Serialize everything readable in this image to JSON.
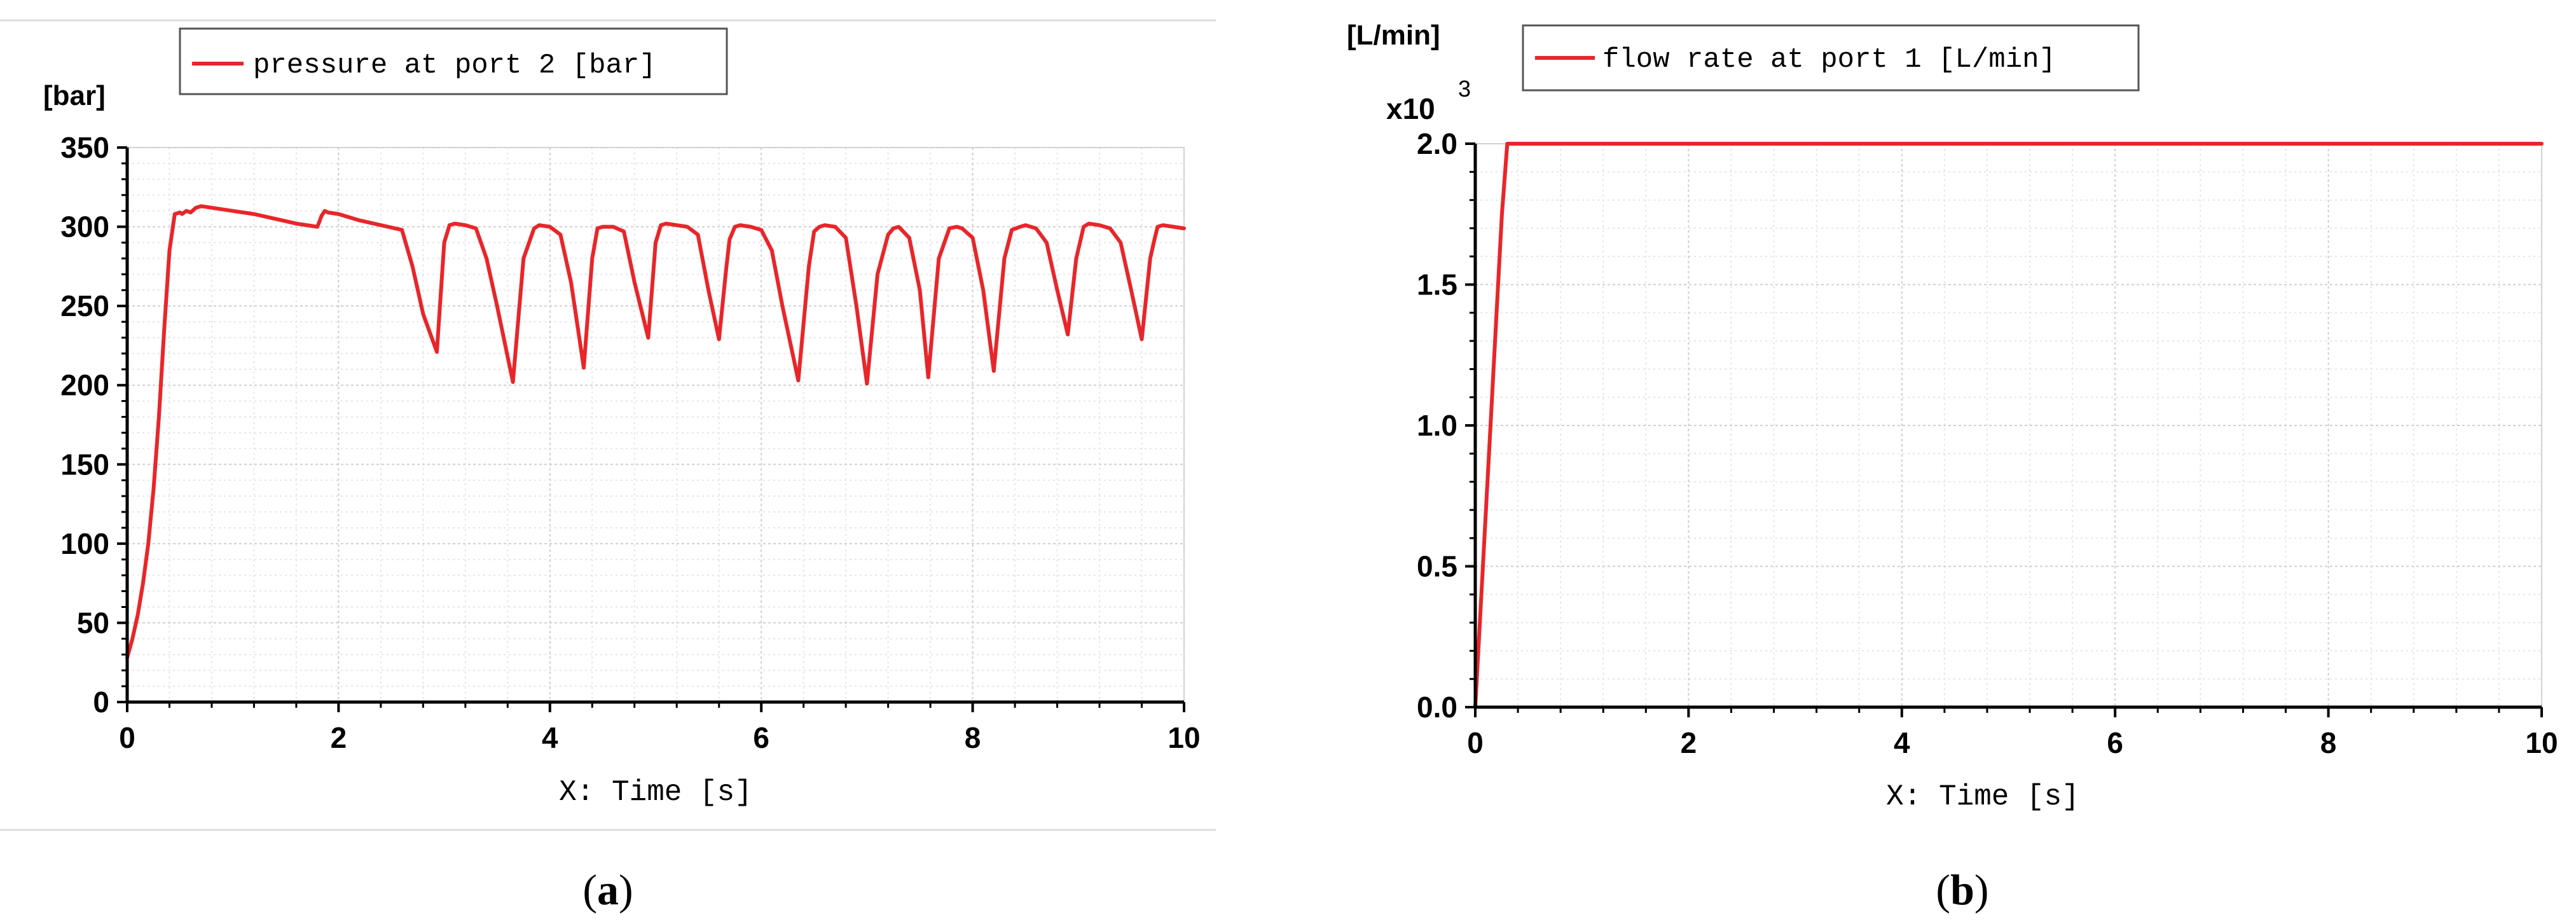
{
  "colors": {
    "series": "#e8262a",
    "axis": "#000000",
    "grid": "#cfcfcf",
    "subgrid": "#e6e6e6",
    "frame": "#d8d8d8"
  },
  "panels": [
    {
      "caption_letter": "a",
      "y_unit": "[bar]",
      "y_multiplier": "",
      "x_label": "X: Time [s]"
    },
    {
      "caption_letter": "b",
      "y_unit": "[L/min]",
      "y_multiplier": "x10",
      "y_multiplier_exp": "3",
      "x_label": "X: Time [s]"
    }
  ],
  "chart_data": [
    {
      "type": "line",
      "title": "",
      "xlabel": "X: Time [s]",
      "ylabel": "[bar]",
      "xlim": [
        0,
        10
      ],
      "ylim": [
        0,
        350
      ],
      "x_ticks": [
        "0",
        "2",
        "4",
        "6",
        "8",
        "10"
      ],
      "y_ticks": [
        "0",
        "50",
        "100",
        "150",
        "200",
        "250",
        "300",
        "350"
      ],
      "grid": true,
      "legend_position": "top-left",
      "series": [
        {
          "name": "pressure at port 2 [bar]",
          "x": [
            0,
            0.05,
            0.1,
            0.15,
            0.2,
            0.25,
            0.3,
            0.35,
            0.4,
            0.45,
            0.5,
            0.52,
            0.56,
            0.6,
            0.65,
            0.7,
            0.8,
            1.0,
            1.2,
            1.4,
            1.6,
            1.8,
            1.84,
            1.87,
            1.9,
            2.0,
            2.2,
            2.4,
            2.6,
            2.7,
            2.8,
            2.93,
            3.0,
            3.05,
            3.1,
            3.2,
            3.3,
            3.4,
            3.5,
            3.65,
            3.75,
            3.85,
            3.9,
            4.0,
            4.1,
            4.2,
            4.32,
            4.4,
            4.45,
            4.5,
            4.6,
            4.7,
            4.8,
            4.93,
            5.0,
            5.05,
            5.1,
            5.2,
            5.3,
            5.4,
            5.5,
            5.6,
            5.67,
            5.7,
            5.75,
            5.8,
            5.9,
            6.0,
            6.1,
            6.2,
            6.35,
            6.45,
            6.5,
            6.55,
            6.6,
            6.7,
            6.8,
            6.9,
            7.0,
            7.1,
            7.2,
            7.25,
            7.3,
            7.4,
            7.5,
            7.58,
            7.68,
            7.78,
            7.85,
            7.9,
            8.0,
            8.1,
            8.2,
            8.3,
            8.37,
            8.45,
            8.5,
            8.55,
            8.6,
            8.7,
            8.8,
            8.9,
            8.98,
            9.05,
            9.1,
            9.2,
            9.3,
            9.4,
            9.5,
            9.6,
            9.68,
            9.72,
            9.75,
            9.8,
            9.9,
            10.0
          ],
          "y": [
            28,
            40,
            55,
            75,
            100,
            135,
            180,
            235,
            285,
            308,
            309,
            308,
            310,
            309,
            312,
            313,
            312,
            310,
            308,
            305,
            302,
            300,
            307,
            310,
            309,
            308,
            304,
            301,
            298,
            275,
            245,
            221,
            290,
            301,
            302,
            301,
            299,
            280,
            250,
            202,
            280,
            299,
            301,
            300,
            295,
            265,
            211,
            280,
            299,
            300,
            300,
            297,
            265,
            230,
            290,
            301,
            302,
            301,
            300,
            295,
            260,
            229,
            275,
            292,
            300,
            301,
            300,
            298,
            285,
            250,
            203,
            275,
            297,
            300,
            301,
            300,
            293,
            250,
            201,
            270,
            295,
            299,
            300,
            293,
            260,
            205,
            280,
            299,
            300,
            299,
            293,
            260,
            209,
            280,
            298,
            300,
            301,
            300,
            299,
            290,
            260,
            232,
            280,
            300,
            302,
            301,
            299,
            290,
            260,
            229,
            280,
            292,
            300,
            301,
            300,
            299
          ]
        }
      ]
    },
    {
      "type": "line",
      "title": "",
      "xlabel": "X: Time [s]",
      "ylabel": "[L/min] x10^3",
      "xlim": [
        0,
        10
      ],
      "ylim": [
        0,
        2
      ],
      "x_ticks": [
        "0",
        "2",
        "4",
        "6",
        "8",
        "10"
      ],
      "y_ticks": [
        "0.0",
        "0.5",
        "1.0",
        "1.5",
        "2.0"
      ],
      "grid": true,
      "legend_position": "top-left",
      "series": [
        {
          "name": "flow rate at port 1 [L/min]",
          "x": [
            0,
            0.05,
            0.1,
            0.15,
            0.2,
            0.25,
            0.3,
            10
          ],
          "y": [
            0,
            0.35,
            0.7,
            1.05,
            1.4,
            1.75,
            2.0,
            2.0
          ]
        }
      ]
    }
  ]
}
